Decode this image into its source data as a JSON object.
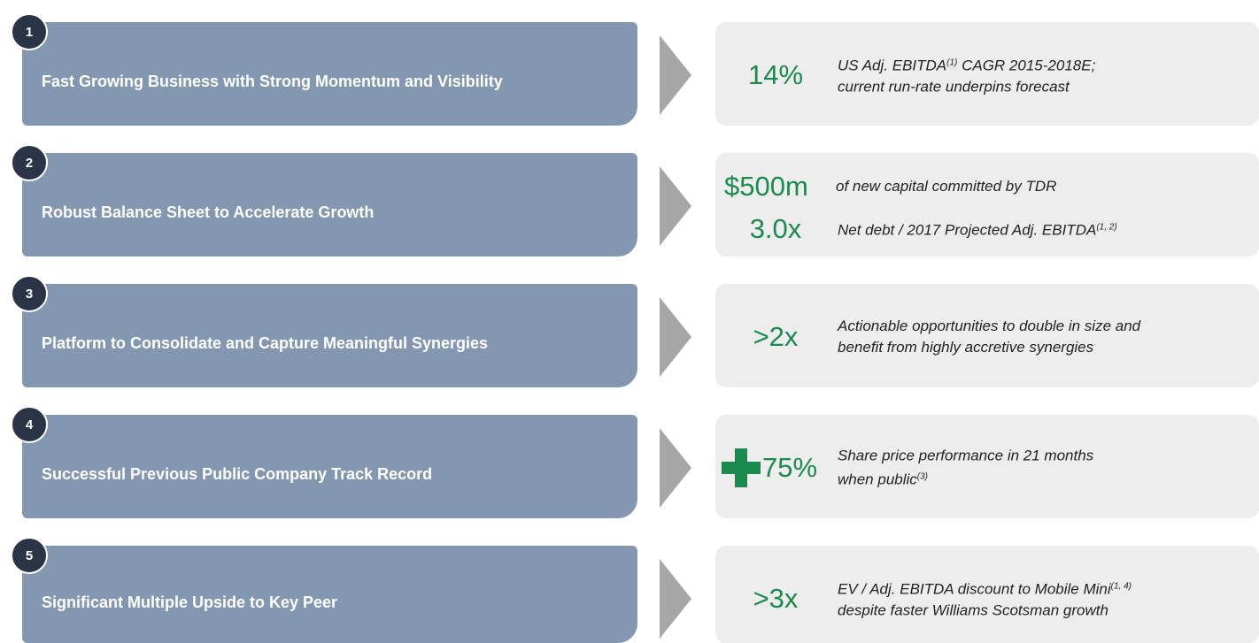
{
  "rows": [
    {
      "number": "1",
      "title": "Fast Growing Business with Strong Momentum and Visibility",
      "metrics": [
        {
          "figure": "14%",
          "lines": [
            [
              "US Adj. EBITDA",
              {
                "sup": "(1)"
              },
              " CAGR 2015-2018E;"
            ],
            [
              "current run-rate underpins forecast"
            ]
          ]
        }
      ]
    },
    {
      "number": "2",
      "title": "Robust Balance Sheet to Accelerate Growth",
      "metrics": [
        {
          "figure": "$500m",
          "lines": [
            [
              "of new capital committed by TDR"
            ]
          ]
        },
        {
          "figure": "3.0x",
          "lines": [
            [
              "Net debt / 2017 Projected Adj. EBITDA",
              {
                "sup": "(1, 2)"
              }
            ]
          ]
        }
      ]
    },
    {
      "number": "3",
      "title": "Platform to Consolidate and Capture Meaningful Synergies",
      "metrics": [
        {
          "figure": ">2x",
          "lines": [
            [
              "Actionable opportunities to double in size and"
            ],
            [
              "benefit from highly accretive synergies"
            ]
          ]
        }
      ]
    },
    {
      "number": "4",
      "title": "Successful Previous Public Company  Track Record",
      "metrics": [
        {
          "figure": "75%",
          "lines": [
            [
              "Share price performance in 21 months"
            ],
            [
              "when public",
              {
                "sup": "(3)"
              }
            ]
          ]
        }
      ]
    },
    {
      "number": "5",
      "title": "Significant Multiple Upside to Key Peer",
      "metrics": [
        {
          "figure": ">3x",
          "lines": [
            [
              "EV / Adj. EBITDA discount to Mobile Mini",
              {
                "sup": "(1, 4)"
              }
            ],
            [
              "despite faster Williams Scotsman growth"
            ]
          ]
        }
      ]
    }
  ]
}
